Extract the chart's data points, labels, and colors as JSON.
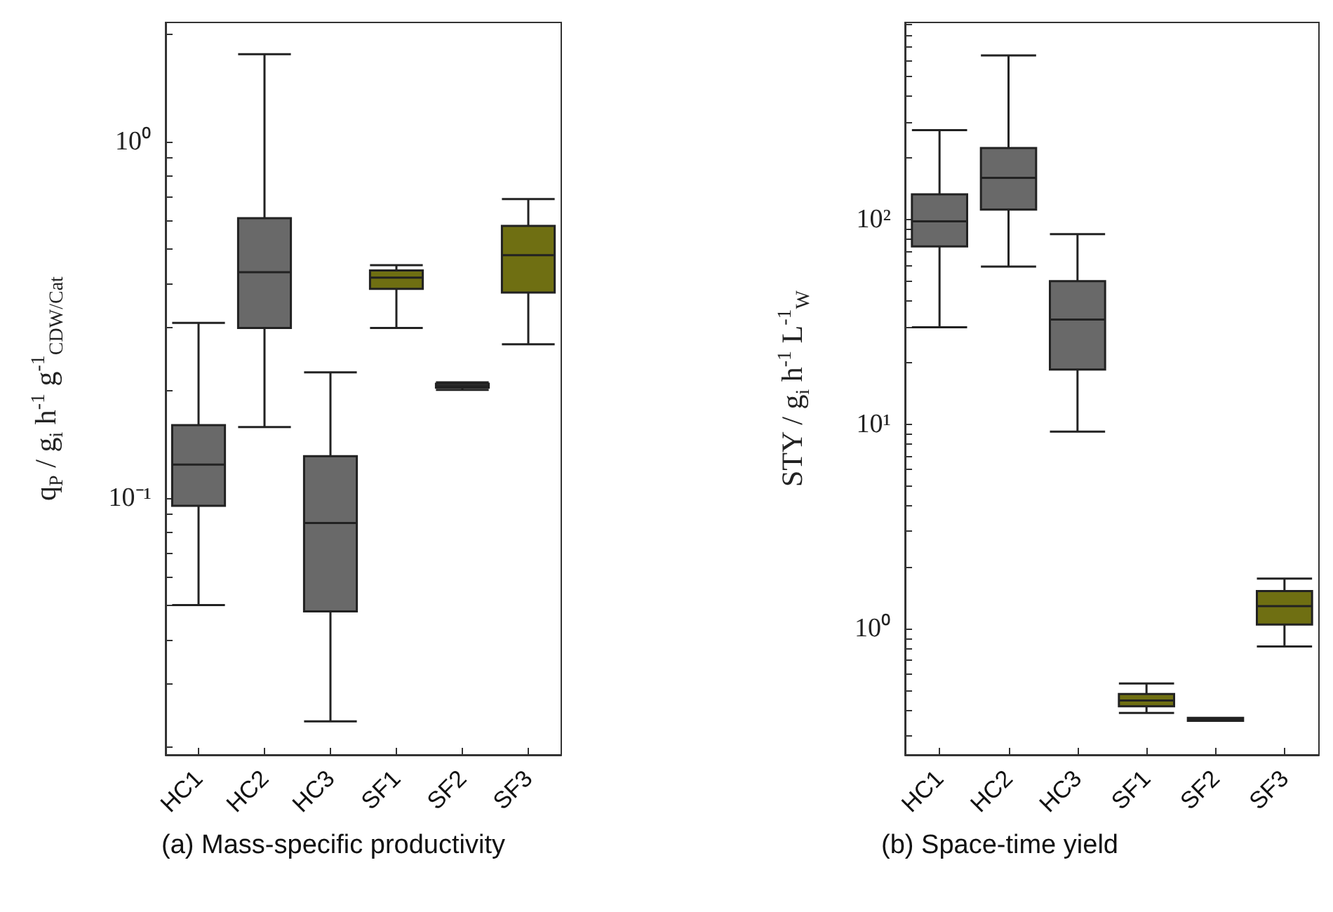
{
  "chart_data": [
    {
      "type": "box",
      "title": "(a) Mass-specific productivity",
      "ylabel": "q$_{P}$ / g$_{i}$ h$^{-1}$ g$^{-1}$$_{CDW/Cat}$",
      "log": true,
      "grid": false,
      "categories": [
        "HC1",
        "HC2",
        "HC3",
        "SF1",
        "SF2",
        "SF3"
      ],
      "colors": [
        "#696969",
        "#696969",
        "#696969",
        "#6f6f12",
        "#696969",
        "#6f6f12"
      ],
      "boxes": [
        {
          "low": 0.05,
          "q1": 0.095,
          "median": 0.124,
          "q3": 0.16,
          "high": 0.31
        },
        {
          "low": 0.158,
          "q1": 0.3,
          "median": 0.43,
          "q3": 0.61,
          "high": 1.76
        },
        {
          "low": 0.0236,
          "q1": 0.048,
          "median": 0.085,
          "q3": 0.131,
          "high": 0.225
        },
        {
          "low": 0.3,
          "q1": 0.386,
          "median": 0.415,
          "q3": 0.435,
          "high": 0.45
        },
        {
          "low": 0.201,
          "q1": 0.204,
          "median": 0.206,
          "q3": 0.209,
          "high": 0.211
        },
        {
          "low": 0.27,
          "q1": 0.377,
          "median": 0.48,
          "q3": 0.58,
          "high": 0.69
        }
      ],
      "ylim": [
        0.019,
        2.16
      ],
      "yticks": [
        {
          "value": 0.02,
          "label": null
        },
        {
          "value": 0.03,
          "label": null
        },
        {
          "value": 0.04,
          "label": null
        },
        {
          "value": 0.05,
          "label": null
        },
        {
          "value": 0.06,
          "label": null
        },
        {
          "value": 0.07,
          "label": null
        },
        {
          "value": 0.08,
          "label": null
        },
        {
          "value": 0.09,
          "label": null
        },
        {
          "value": 0.1,
          "label": "10⁻¹"
        },
        {
          "value": 0.2,
          "label": null
        },
        {
          "value": 0.3,
          "label": null
        },
        {
          "value": 0.4,
          "label": null
        },
        {
          "value": 0.5,
          "label": null
        },
        {
          "value": 0.6,
          "label": null
        },
        {
          "value": 0.7,
          "label": null
        },
        {
          "value": 0.8,
          "label": null
        },
        {
          "value": 0.9,
          "label": null
        },
        {
          "value": 1,
          "label": "10⁰"
        },
        {
          "value": 2,
          "label": null
        }
      ]
    },
    {
      "type": "box",
      "title": "(b) Space-time yield",
      "ylabel": "STY / g$_{i}$ h$^{-1}$ L$^{-1}$$_{W}$",
      "log": true,
      "grid": false,
      "categories": [
        "HC1",
        "HC2",
        "HC3",
        "SF1",
        "SF2",
        "SF3"
      ],
      "colors": [
        "#696969",
        "#696969",
        "#696969",
        "#6f6f12",
        "#696969",
        "#6f6f12"
      ],
      "boxes": [
        {
          "low": 29.8,
          "q1": 74,
          "median": 98,
          "q3": 133,
          "high": 274
        },
        {
          "low": 58.9,
          "q1": 112,
          "median": 160,
          "q3": 224,
          "high": 635
        },
        {
          "low": 9.2,
          "q1": 18.5,
          "median": 32.5,
          "q3": 50,
          "high": 85
        },
        {
          "low": 0.388,
          "q1": 0.418,
          "median": 0.446,
          "q3": 0.48,
          "high": 0.54
        },
        {
          "low": 0.355,
          "q1": 0.355,
          "median": 0.361,
          "q3": 0.367,
          "high": 0.367
        },
        {
          "low": 0.82,
          "q1": 1.05,
          "median": 1.29,
          "q3": 1.53,
          "high": 1.76
        }
      ],
      "ylim": [
        0.242,
        920
      ],
      "yticks": [
        {
          "value": 0.3,
          "label": null
        },
        {
          "value": 0.4,
          "label": null
        },
        {
          "value": 0.5,
          "label": null
        },
        {
          "value": 0.6,
          "label": null
        },
        {
          "value": 0.7,
          "label": null
        },
        {
          "value": 0.8,
          "label": null
        },
        {
          "value": 0.9,
          "label": null
        },
        {
          "value": 1,
          "label": "10⁰"
        },
        {
          "value": 2,
          "label": null
        },
        {
          "value": 3,
          "label": null
        },
        {
          "value": 4,
          "label": null
        },
        {
          "value": 5,
          "label": null
        },
        {
          "value": 6,
          "label": null
        },
        {
          "value": 7,
          "label": null
        },
        {
          "value": 8,
          "label": null
        },
        {
          "value": 9,
          "label": null
        },
        {
          "value": 10,
          "label": "10¹"
        },
        {
          "value": 20,
          "label": null
        },
        {
          "value": 30,
          "label": null
        },
        {
          "value": 40,
          "label": null
        },
        {
          "value": 50,
          "label": null
        },
        {
          "value": 60,
          "label": null
        },
        {
          "value": 70,
          "label": null
        },
        {
          "value": 80,
          "label": null
        },
        {
          "value": 90,
          "label": null
        },
        {
          "value": 100,
          "label": "10²"
        },
        {
          "value": 200,
          "label": null
        },
        {
          "value": 300,
          "label": null
        },
        {
          "value": 400,
          "label": null
        },
        {
          "value": 500,
          "label": null
        },
        {
          "value": 600,
          "label": null
        },
        {
          "value": 700,
          "label": null
        },
        {
          "value": 800,
          "label": null
        },
        {
          "value": 900,
          "label": null
        }
      ]
    }
  ]
}
